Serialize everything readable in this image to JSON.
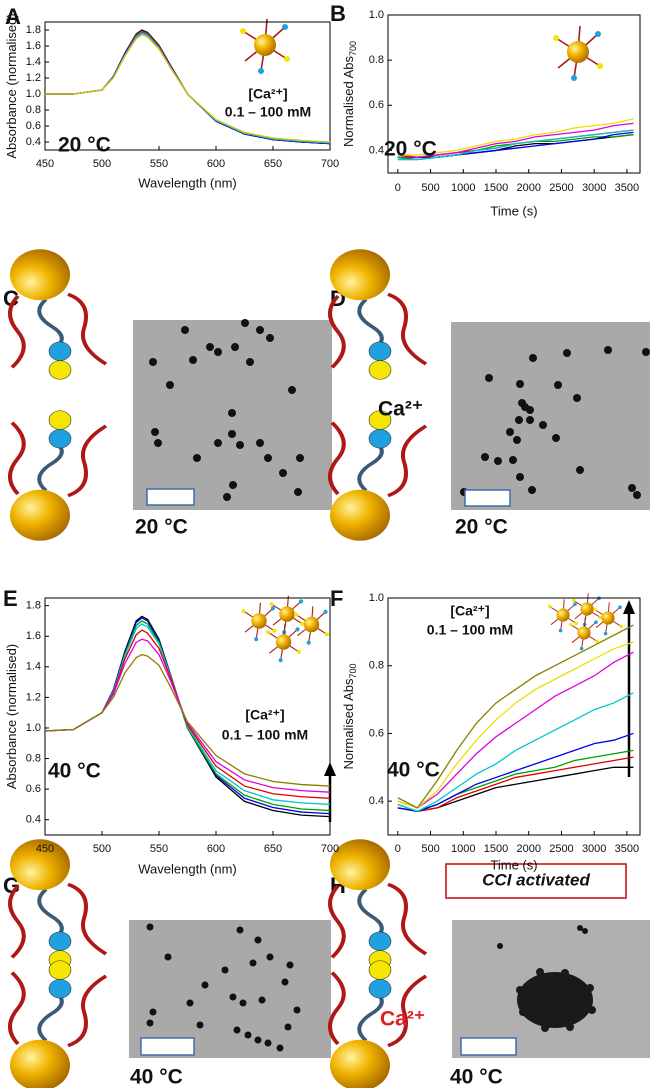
{
  "chart_data": [
    {
      "type": "line",
      "label": "A",
      "x_label": "Wavelength (nm)",
      "y_label": "Absorbance (normalised)",
      "annotations": [
        "[Ca²⁺]",
        "0.1 – 100 mM",
        "20 °C"
      ],
      "x": [
        450,
        475,
        500,
        510,
        520,
        530,
        535,
        540,
        550,
        560,
        575,
        600,
        625,
        650,
        675,
        700
      ],
      "xlim": [
        450,
        700
      ],
      "xticks": [
        450,
        500,
        550,
        600,
        650,
        700
      ],
      "ylim": [
        0.3,
        1.9
      ],
      "yticks": [
        0.4,
        0.6,
        0.8,
        {
          "value": 1,
          "label": "1.0"
        },
        1.2,
        1.4,
        1.6,
        1.8
      ],
      "series": [
        {
          "color": "#000000",
          "values": [
            1.0,
            1.0,
            1.05,
            1.22,
            1.51,
            1.75,
            1.8,
            1.77,
            1.61,
            1.36,
            1.0,
            0.66,
            0.5,
            0.43,
            0.4,
            0.38
          ]
        },
        {
          "color": "#e00000",
          "values": [
            1.0,
            1.0,
            1.05,
            1.22,
            1.5,
            1.74,
            1.79,
            1.76,
            1.6,
            1.35,
            1.0,
            0.66,
            0.5,
            0.43,
            0.4,
            0.38
          ]
        },
        {
          "color": "#0000ee",
          "values": [
            1.0,
            1.0,
            1.05,
            1.22,
            1.5,
            1.73,
            1.78,
            1.75,
            1.59,
            1.35,
            1.0,
            0.66,
            0.5,
            0.43,
            0.4,
            0.38
          ]
        },
        {
          "color": "#00a000",
          "values": [
            1.0,
            1.0,
            1.05,
            1.21,
            1.49,
            1.73,
            1.78,
            1.75,
            1.59,
            1.34,
            1.0,
            0.67,
            0.51,
            0.44,
            0.41,
            0.39
          ]
        },
        {
          "color": "#e000e0",
          "values": [
            1.0,
            1.0,
            1.05,
            1.21,
            1.49,
            1.72,
            1.77,
            1.74,
            1.58,
            1.34,
            1.0,
            0.67,
            0.51,
            0.44,
            0.41,
            0.39
          ]
        },
        {
          "color": "#00c8c8",
          "values": [
            1.0,
            1.0,
            1.05,
            1.21,
            1.48,
            1.71,
            1.76,
            1.73,
            1.57,
            1.33,
            1.0,
            0.67,
            0.51,
            0.44,
            0.41,
            0.39
          ]
        },
        {
          "color": "#d8c800",
          "values": [
            1.0,
            1.0,
            1.05,
            1.2,
            1.47,
            1.69,
            1.74,
            1.71,
            1.56,
            1.33,
            1.0,
            0.68,
            0.52,
            0.45,
            0.42,
            0.4
          ]
        }
      ]
    },
    {
      "type": "line",
      "label": "B",
      "x_label": "Time (s)",
      "y_label": "Normalised Abs",
      "y_label_sub": "700",
      "annotations": [
        "20 °C"
      ],
      "x": [
        0,
        300,
        600,
        900,
        1200,
        1500,
        1800,
        2100,
        2400,
        2700,
        3000,
        3300,
        3600
      ],
      "xlim": [
        -150,
        3700
      ],
      "xticks": [
        0,
        500,
        1000,
        1500,
        2000,
        2500,
        3000,
        3500
      ],
      "ylim": [
        0.3,
        1.0
      ],
      "yticks": [
        0.4,
        0.6,
        0.8,
        {
          "value": 1,
          "label": "1.0"
        }
      ],
      "series": [
        {
          "color": "#000000",
          "values": [
            0.37,
            0.37,
            0.37,
            0.38,
            0.39,
            0.4,
            0.42,
            0.43,
            0.43,
            0.44,
            0.45,
            0.46,
            0.47
          ]
        },
        {
          "color": "#e00000",
          "values": [
            0.37,
            0.37,
            0.38,
            0.39,
            0.4,
            0.41,
            0.43,
            0.44,
            0.45,
            0.46,
            0.47,
            0.48,
            0.49
          ]
        },
        {
          "color": "#00a000",
          "values": [
            0.37,
            0.36,
            0.37,
            0.38,
            0.4,
            0.42,
            0.43,
            0.44,
            0.44,
            0.45,
            0.46,
            0.46,
            0.47
          ]
        },
        {
          "color": "#0000ee",
          "values": [
            0.36,
            0.36,
            0.37,
            0.38,
            0.39,
            0.4,
            0.41,
            0.42,
            0.43,
            0.44,
            0.45,
            0.47,
            0.48
          ]
        },
        {
          "color": "#00c8c8",
          "values": [
            0.36,
            0.36,
            0.37,
            0.38,
            0.4,
            0.41,
            0.43,
            0.44,
            0.45,
            0.46,
            0.47,
            0.48,
            0.49
          ]
        },
        {
          "color": "#e000e0",
          "values": [
            0.38,
            0.37,
            0.38,
            0.39,
            0.41,
            0.43,
            0.44,
            0.46,
            0.47,
            0.48,
            0.49,
            0.51,
            0.52
          ]
        },
        {
          "color": "#e8e000",
          "values": [
            0.38,
            0.38,
            0.39,
            0.4,
            0.42,
            0.44,
            0.45,
            0.47,
            0.48,
            0.5,
            0.51,
            0.52,
            0.54
          ]
        }
      ]
    },
    {
      "type": "line",
      "label": "E",
      "x_label": "Wavelength (nm)",
      "y_label": "Absorbance (normalised)",
      "annotations": [
        "[Ca²⁺]",
        "0.1 – 100 mM",
        "40 °C"
      ],
      "x": [
        450,
        475,
        500,
        510,
        520,
        530,
        535,
        540,
        550,
        560,
        575,
        600,
        625,
        650,
        675,
        700
      ],
      "xlim": [
        450,
        700
      ],
      "xticks": [
        450,
        500,
        550,
        600,
        650,
        700
      ],
      "ylim": [
        0.3,
        1.85
      ],
      "yticks": [
        0.4,
        0.6,
        0.8,
        {
          "value": 1,
          "label": "1.0"
        },
        1.2,
        1.4,
        1.6,
        1.8
      ],
      "series": [
        {
          "color": "#000000",
          "values": [
            0.98,
            0.99,
            1.1,
            1.25,
            1.5,
            1.7,
            1.73,
            1.71,
            1.58,
            1.35,
            1.0,
            0.68,
            0.52,
            0.46,
            0.43,
            0.42
          ]
        },
        {
          "color": "#0000ee",
          "values": [
            0.98,
            0.99,
            1.1,
            1.25,
            1.49,
            1.69,
            1.72,
            1.7,
            1.57,
            1.35,
            1.0,
            0.69,
            0.54,
            0.48,
            0.45,
            0.44
          ]
        },
        {
          "color": "#00a000",
          "values": [
            0.98,
            0.99,
            1.1,
            1.24,
            1.48,
            1.67,
            1.7,
            1.68,
            1.56,
            1.34,
            1.0,
            0.7,
            0.56,
            0.5,
            0.47,
            0.46
          ]
        },
        {
          "color": "#00c8c8",
          "values": [
            0.98,
            0.99,
            1.1,
            1.24,
            1.47,
            1.65,
            1.68,
            1.66,
            1.55,
            1.34,
            1.01,
            0.72,
            0.59,
            0.53,
            0.51,
            0.5
          ]
        },
        {
          "color": "#e00000",
          "values": [
            0.98,
            0.99,
            1.1,
            1.23,
            1.45,
            1.61,
            1.64,
            1.62,
            1.52,
            1.33,
            1.02,
            0.75,
            0.62,
            0.57,
            0.55,
            0.54
          ]
        },
        {
          "color": "#e000e0",
          "values": [
            0.98,
            0.99,
            1.1,
            1.22,
            1.42,
            1.56,
            1.58,
            1.57,
            1.48,
            1.31,
            1.03,
            0.78,
            0.66,
            0.61,
            0.59,
            0.58
          ]
        },
        {
          "color": "#888000",
          "values": [
            0.98,
            0.99,
            1.1,
            1.2,
            1.36,
            1.46,
            1.48,
            1.47,
            1.41,
            1.27,
            1.04,
            0.82,
            0.7,
            0.65,
            0.63,
            0.62
          ]
        }
      ]
    },
    {
      "type": "line",
      "label": "F",
      "x_label": "Time (s)",
      "y_label": "Normalised Abs",
      "y_label_sub": "700",
      "annotations": [
        "[Ca²⁺]",
        "0.1 – 100 mM",
        "40 °C"
      ],
      "x": [
        0,
        300,
        600,
        900,
        1200,
        1500,
        1800,
        2100,
        2400,
        2700,
        3000,
        3300,
        3600
      ],
      "xlim": [
        -150,
        3700
      ],
      "xticks": [
        0,
        500,
        1000,
        1500,
        2000,
        2500,
        3000,
        3500
      ],
      "ylim": [
        0.3,
        1.0
      ],
      "yticks": [
        0.4,
        0.6,
        0.8,
        {
          "value": 1,
          "label": "1.0"
        }
      ],
      "series": [
        {
          "color": "#000000",
          "values": [
            0.38,
            0.37,
            0.38,
            0.4,
            0.42,
            0.44,
            0.45,
            0.46,
            0.47,
            0.48,
            0.49,
            0.5,
            0.5
          ]
        },
        {
          "color": "#e00000",
          "values": [
            0.38,
            0.37,
            0.38,
            0.41,
            0.43,
            0.45,
            0.47,
            0.48,
            0.49,
            0.5,
            0.51,
            0.52,
            0.53
          ]
        },
        {
          "color": "#00a000",
          "values": [
            0.39,
            0.37,
            0.39,
            0.42,
            0.44,
            0.46,
            0.48,
            0.49,
            0.5,
            0.52,
            0.53,
            0.54,
            0.55
          ]
        },
        {
          "color": "#0000ee",
          "values": [
            0.38,
            0.37,
            0.39,
            0.42,
            0.45,
            0.47,
            0.49,
            0.51,
            0.53,
            0.55,
            0.57,
            0.58,
            0.6
          ]
        },
        {
          "color": "#00c8c8",
          "values": [
            0.39,
            0.37,
            0.4,
            0.44,
            0.48,
            0.51,
            0.55,
            0.58,
            0.61,
            0.64,
            0.67,
            0.69,
            0.72
          ]
        },
        {
          "color": "#e000e0",
          "values": [
            0.4,
            0.38,
            0.42,
            0.48,
            0.54,
            0.59,
            0.63,
            0.67,
            0.71,
            0.74,
            0.77,
            0.81,
            0.84
          ]
        },
        {
          "color": "#e8e000",
          "values": [
            0.4,
            0.38,
            0.43,
            0.51,
            0.58,
            0.64,
            0.69,
            0.73,
            0.76,
            0.79,
            0.82,
            0.85,
            0.87
          ]
        },
        {
          "color": "#888000",
          "values": [
            0.41,
            0.38,
            0.46,
            0.55,
            0.63,
            0.69,
            0.73,
            0.77,
            0.8,
            0.83,
            0.86,
            0.89,
            0.92
          ]
        }
      ]
    }
  ],
  "panels": [
    {
      "label": "C",
      "temperature": "20 °C"
    },
    {
      "label": "D",
      "ion": "Ca²⁺",
      "temperature": "20 °C"
    },
    {
      "label": "G",
      "temperature": "40 °C"
    },
    {
      "label": "H",
      "ion": "Ca²⁺",
      "temperature": "40 °C",
      "note": "CCI activated"
    }
  ]
}
